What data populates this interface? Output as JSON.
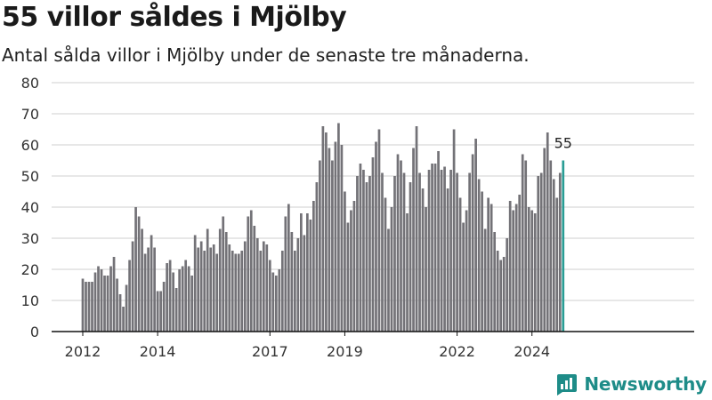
{
  "title": "55 villor såldes i Mjölby",
  "subtitle": "Antal sålda villor i Mjölby under de senaste tre månaderna.",
  "brand": {
    "name": "Newsworthy",
    "icon": "newsworthy-logo-icon"
  },
  "colors": {
    "bar": "#737277",
    "highlight": "#2a9d95",
    "grid": "#cfcfcf",
    "axis": "#111111",
    "brand": "#1e8c88"
  },
  "chart_data": {
    "type": "bar",
    "x_start": "2012-01",
    "xticks": [
      "2012",
      "2014",
      "2017",
      "2019",
      "2022",
      "2024"
    ],
    "yticks": [
      0,
      10,
      20,
      30,
      40,
      50,
      60,
      70,
      80
    ],
    "ylim": [
      0,
      80
    ],
    "grid": true,
    "highlight_label": "55",
    "values": [
      17,
      16,
      16,
      16,
      19,
      21,
      20,
      18,
      18,
      21,
      24,
      17,
      12,
      8,
      15,
      23,
      29,
      40,
      37,
      33,
      25,
      27,
      31,
      27,
      13,
      13,
      16,
      22,
      23,
      19,
      14,
      20,
      21,
      23,
      21,
      18,
      31,
      27,
      29,
      26,
      33,
      27,
      28,
      25,
      33,
      37,
      32,
      28,
      26,
      25,
      25,
      26,
      29,
      37,
      39,
      34,
      30,
      26,
      29,
      28,
      23,
      19,
      18,
      20,
      26,
      37,
      41,
      32,
      26,
      30,
      38,
      31,
      38,
      36,
      42,
      48,
      55,
      66,
      64,
      59,
      55,
      61,
      67,
      60,
      45,
      35,
      39,
      42,
      50,
      54,
      52,
      48,
      50,
      56,
      61,
      65,
      51,
      43,
      33,
      40,
      50,
      57,
      55,
      51,
      38,
      48,
      59,
      66,
      51,
      46,
      40,
      52,
      54,
      54,
      58,
      52,
      53,
      46,
      52,
      65,
      51,
      43,
      35,
      39,
      51,
      57,
      62,
      49,
      45,
      33,
      43,
      41,
      32,
      26,
      23,
      24,
      30,
      42,
      39,
      41,
      44,
      57,
      55,
      40,
      39,
      38,
      50,
      51,
      59,
      64,
      55,
      49,
      43,
      51,
      55
    ]
  }
}
